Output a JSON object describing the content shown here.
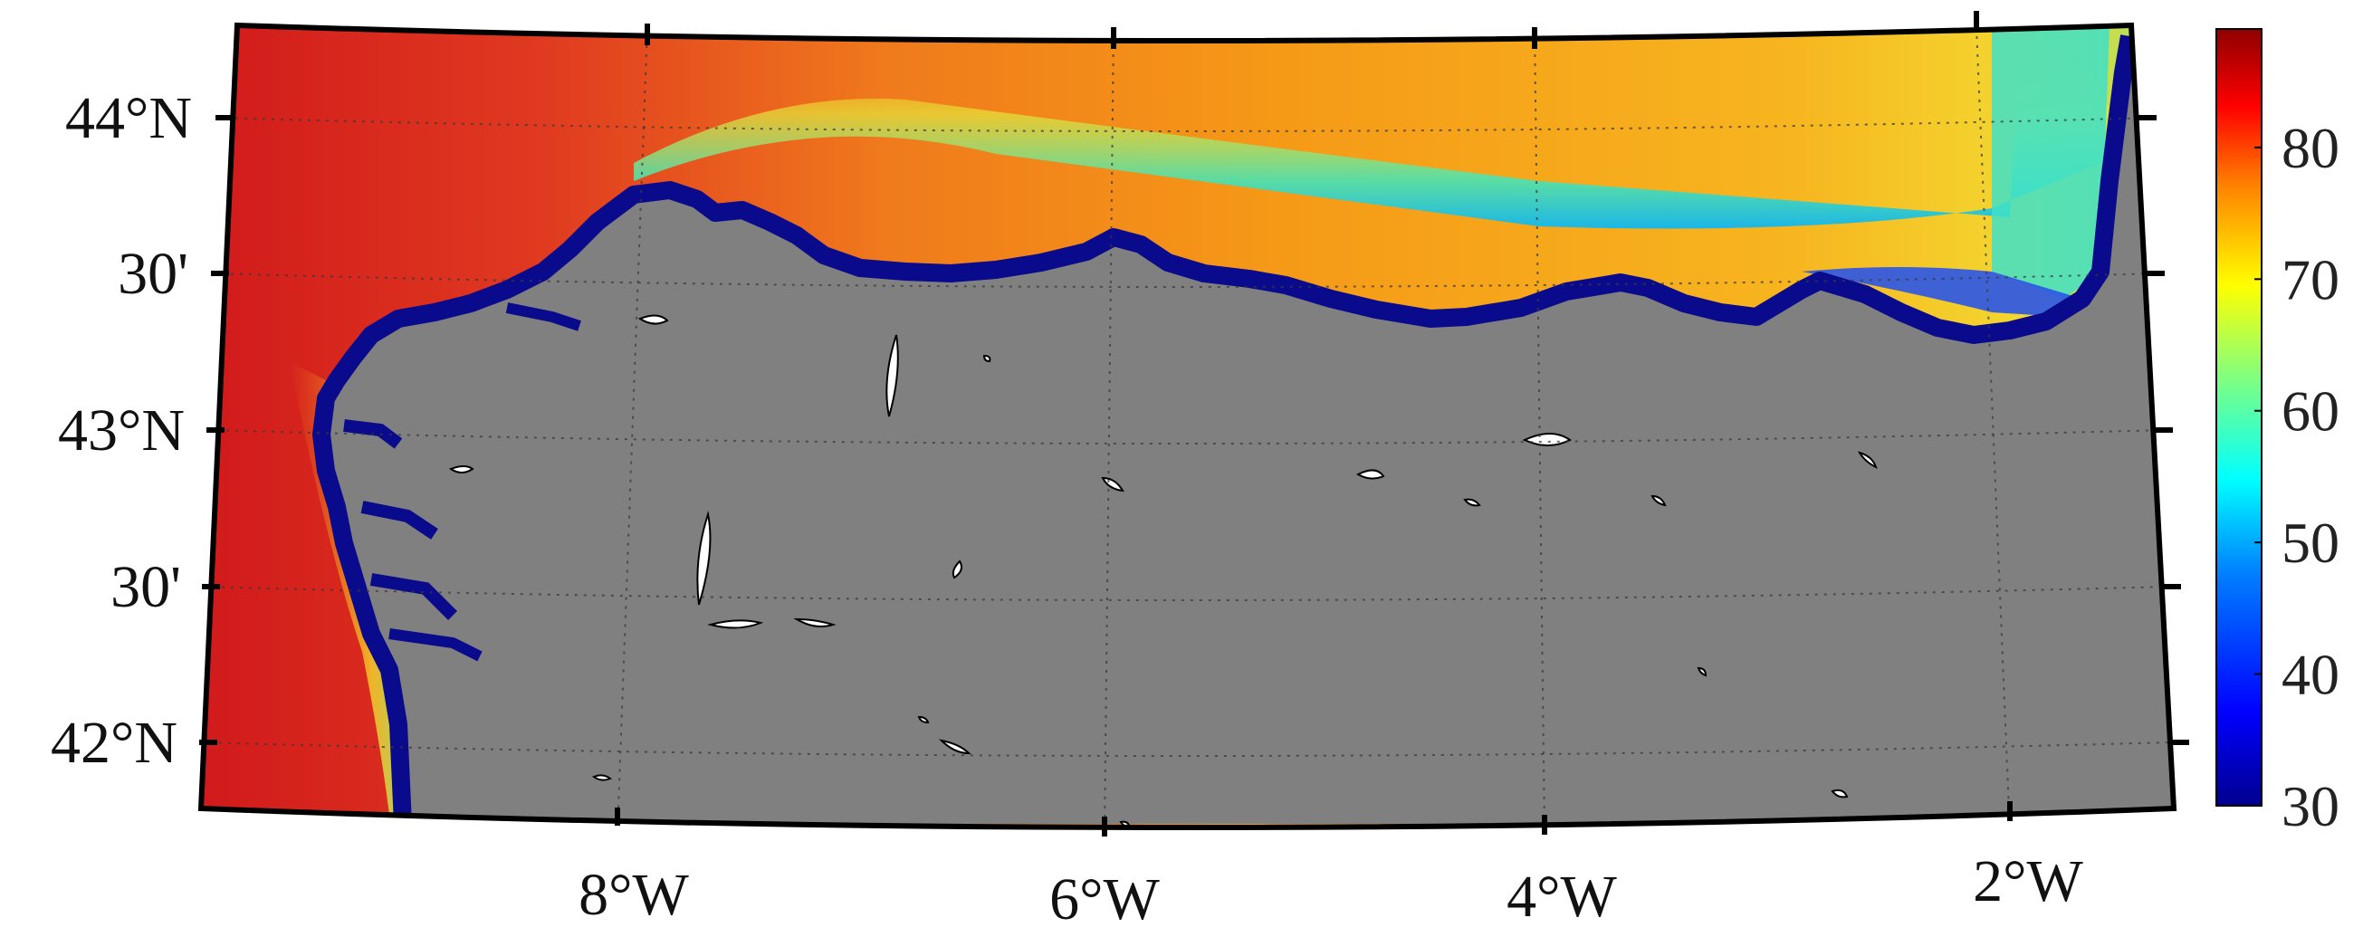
{
  "map": {
    "region": "Cantabrian Sea",
    "colors": {
      "land": "#808080",
      "coast_low": "#0a0a8c",
      "lake": "#ffffff"
    },
    "lat_labels": [
      {
        "key": "44N",
        "text": "44°N"
      },
      {
        "key": "43_30",
        "text": "30'"
      },
      {
        "key": "43N",
        "text": "43°N"
      },
      {
        "key": "42_30",
        "text": "30'"
      },
      {
        "key": "42N",
        "text": "42°N"
      }
    ],
    "lon_labels": [
      {
        "key": "8W",
        "text": "8°W"
      },
      {
        "key": "6W",
        "text": "6°W"
      },
      {
        "key": "4W",
        "text": "4°W"
      },
      {
        "key": "2W",
        "text": "2°W"
      }
    ]
  },
  "colorbar": {
    "min": 30,
    "max": 89,
    "colormap": "jet",
    "ticks": [
      "30",
      "40",
      "50",
      "60",
      "70",
      "80"
    ]
  }
}
